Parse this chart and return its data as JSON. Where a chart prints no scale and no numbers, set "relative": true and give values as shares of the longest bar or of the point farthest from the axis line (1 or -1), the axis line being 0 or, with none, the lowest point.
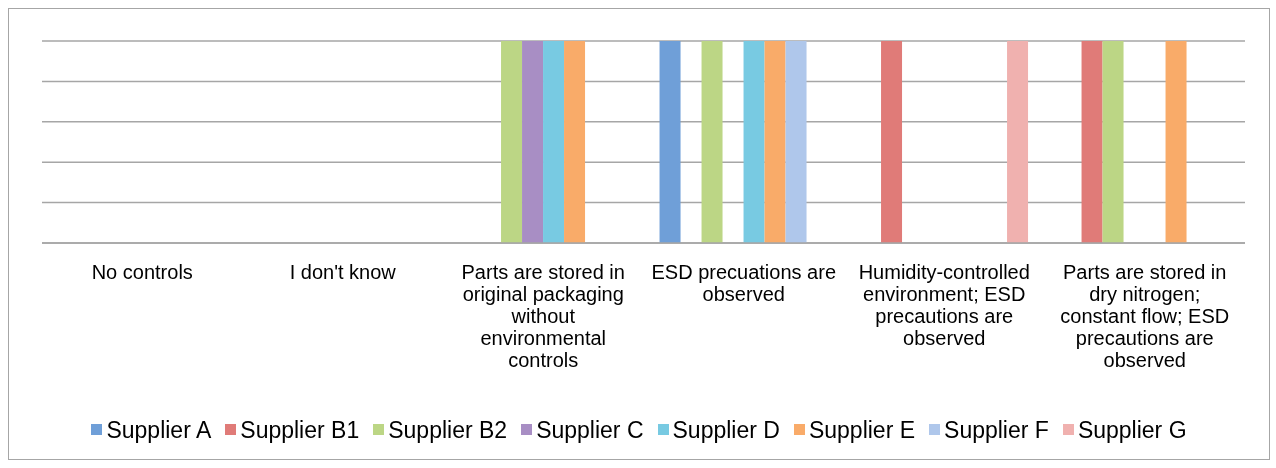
{
  "chart_data": {
    "type": "bar",
    "relative": true,
    "grid": "y",
    "legend": "bottom",
    "categories": [
      "No controls",
      "I don't know",
      "Parts are stored in original packaging without environmental controls",
      "ESD precuations are observed",
      "Humidity-controlled environment; ESD precautions are observed",
      "Parts are stored in dry nitrogen; constant flow; ESD precautions are observed"
    ],
    "series": [
      {
        "name": "Supplier A",
        "color": "#6f9fd8",
        "values": [
          null,
          null,
          null,
          1,
          null,
          null
        ]
      },
      {
        "name": "Supplier B1",
        "color": "#e07b78",
        "values": [
          null,
          null,
          null,
          null,
          1,
          1
        ]
      },
      {
        "name": "Supplier B2",
        "color": "#bcd685",
        "values": [
          null,
          null,
          1,
          1,
          null,
          1
        ]
      },
      {
        "name": "Supplier C",
        "color": "#a88ec4",
        "values": [
          null,
          null,
          1,
          null,
          null,
          null
        ]
      },
      {
        "name": "Supplier D",
        "color": "#78cae2",
        "values": [
          null,
          null,
          1,
          1,
          null,
          null
        ]
      },
      {
        "name": "Supplier E",
        "color": "#f9ab69",
        "values": [
          null,
          null,
          1,
          1,
          null,
          1
        ]
      },
      {
        "name": "Supplier F",
        "color": "#afc7eb",
        "values": [
          null,
          null,
          null,
          1,
          null,
          null
        ]
      },
      {
        "name": "Supplier G",
        "color": "#f0b1af",
        "values": [
          null,
          null,
          null,
          null,
          1,
          null
        ]
      }
    ]
  }
}
